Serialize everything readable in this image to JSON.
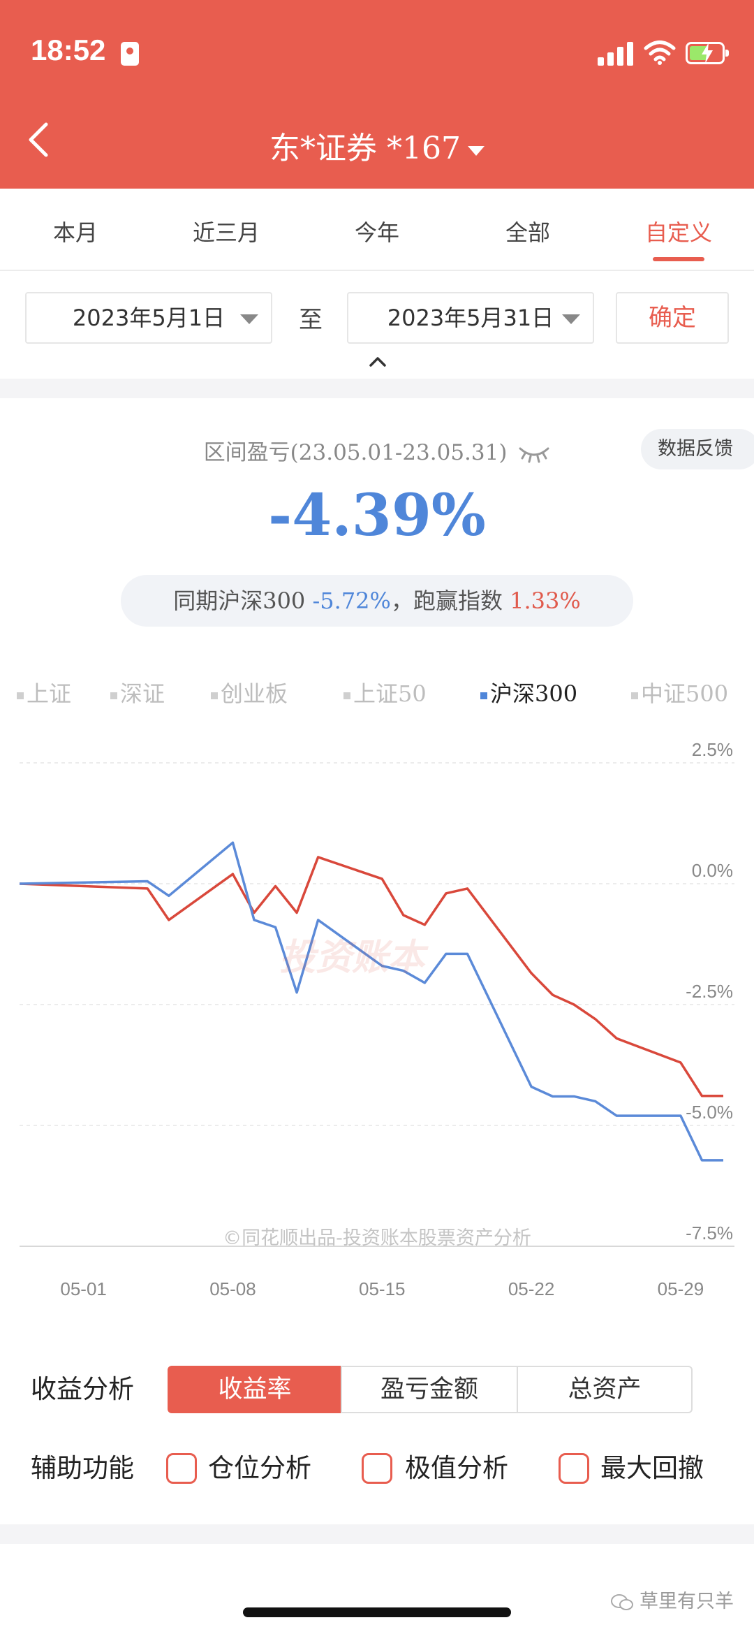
{
  "status_bar": {
    "time": "18:52"
  },
  "header": {
    "title": "东*证券 *167"
  },
  "tabs": [
    {
      "label": "本月"
    },
    {
      "label": "近三月"
    },
    {
      "label": "今年"
    },
    {
      "label": "全部"
    },
    {
      "label": "自定义"
    }
  ],
  "date_range": {
    "start": "2023年5月1日",
    "separator": "至",
    "end": "2023年5月31日",
    "confirm_label": "确定"
  },
  "summary": {
    "label": "区间盈亏(23.05.01-23.05.31)",
    "feedback_label": "数据反馈",
    "value": "-4.39%",
    "compare_prefix": "同期沪深300",
    "compare_index_value": "-5.72%",
    "compare_mid": "，跑赢指数",
    "compare_outperform_value": "1.33%"
  },
  "legend": [
    {
      "label": "上证",
      "active": false
    },
    {
      "label": "深证",
      "active": false
    },
    {
      "label": "创业板",
      "active": false
    },
    {
      "label": "上证50",
      "active": false
    },
    {
      "label": "沪深300",
      "active": true
    },
    {
      "label": "中证500",
      "active": false
    }
  ],
  "chart_data": {
    "type": "line",
    "y_ticks": [
      "2.5%",
      "0.0%",
      "-2.5%",
      "-5.0%",
      "-7.5%"
    ],
    "ylim": [
      -7.5,
      2.5
    ],
    "x_tick_labels": [
      "05-01",
      "05-08",
      "05-15",
      "05-22",
      "05-29"
    ],
    "x": [
      "04-28",
      "05-04",
      "05-05",
      "05-08",
      "05-09",
      "05-10",
      "05-11",
      "05-12",
      "05-15",
      "05-16",
      "05-17",
      "05-18",
      "05-19",
      "05-22",
      "05-23",
      "05-24",
      "05-25",
      "05-26",
      "05-29",
      "05-30",
      "05-31"
    ],
    "series": [
      {
        "name": "portfolio",
        "color": "#d9483b",
        "values": [
          0.0,
          -0.1,
          -0.75,
          0.2,
          -0.6,
          -0.05,
          -0.6,
          0.55,
          0.1,
          -0.65,
          -0.85,
          -0.2,
          -0.1,
          -1.85,
          -2.3,
          -2.5,
          -2.8,
          -3.2,
          -3.7,
          -4.39,
          -4.39
        ]
      },
      {
        "name": "沪深300",
        "color": "#5b8ad8",
        "values": [
          0.0,
          0.05,
          -0.25,
          0.85,
          -0.75,
          -0.9,
          -2.25,
          -0.75,
          -1.7,
          -1.8,
          -2.05,
          -1.45,
          -1.45,
          -4.2,
          -4.4,
          -4.4,
          -4.5,
          -4.8,
          -4.8,
          -5.72,
          -5.72
        ]
      }
    ],
    "watermark": "投资账本",
    "footnote": "©同花顺出品-投资账本股票资产分析"
  },
  "analysis": {
    "label": "收益分析",
    "options": [
      {
        "label": "收益率",
        "active": true
      },
      {
        "label": "盈亏金额",
        "active": false
      },
      {
        "label": "总资产",
        "active": false
      }
    ]
  },
  "aux": {
    "label": "辅助功能",
    "options": [
      {
        "label": "仓位分析"
      },
      {
        "label": "极值分析"
      },
      {
        "label": "最大回撤"
      }
    ]
  },
  "credit": "草里有只羊",
  "colors": {
    "brand": "#e85d4f",
    "blue": "#4f86d9",
    "red": "#d9483b"
  }
}
